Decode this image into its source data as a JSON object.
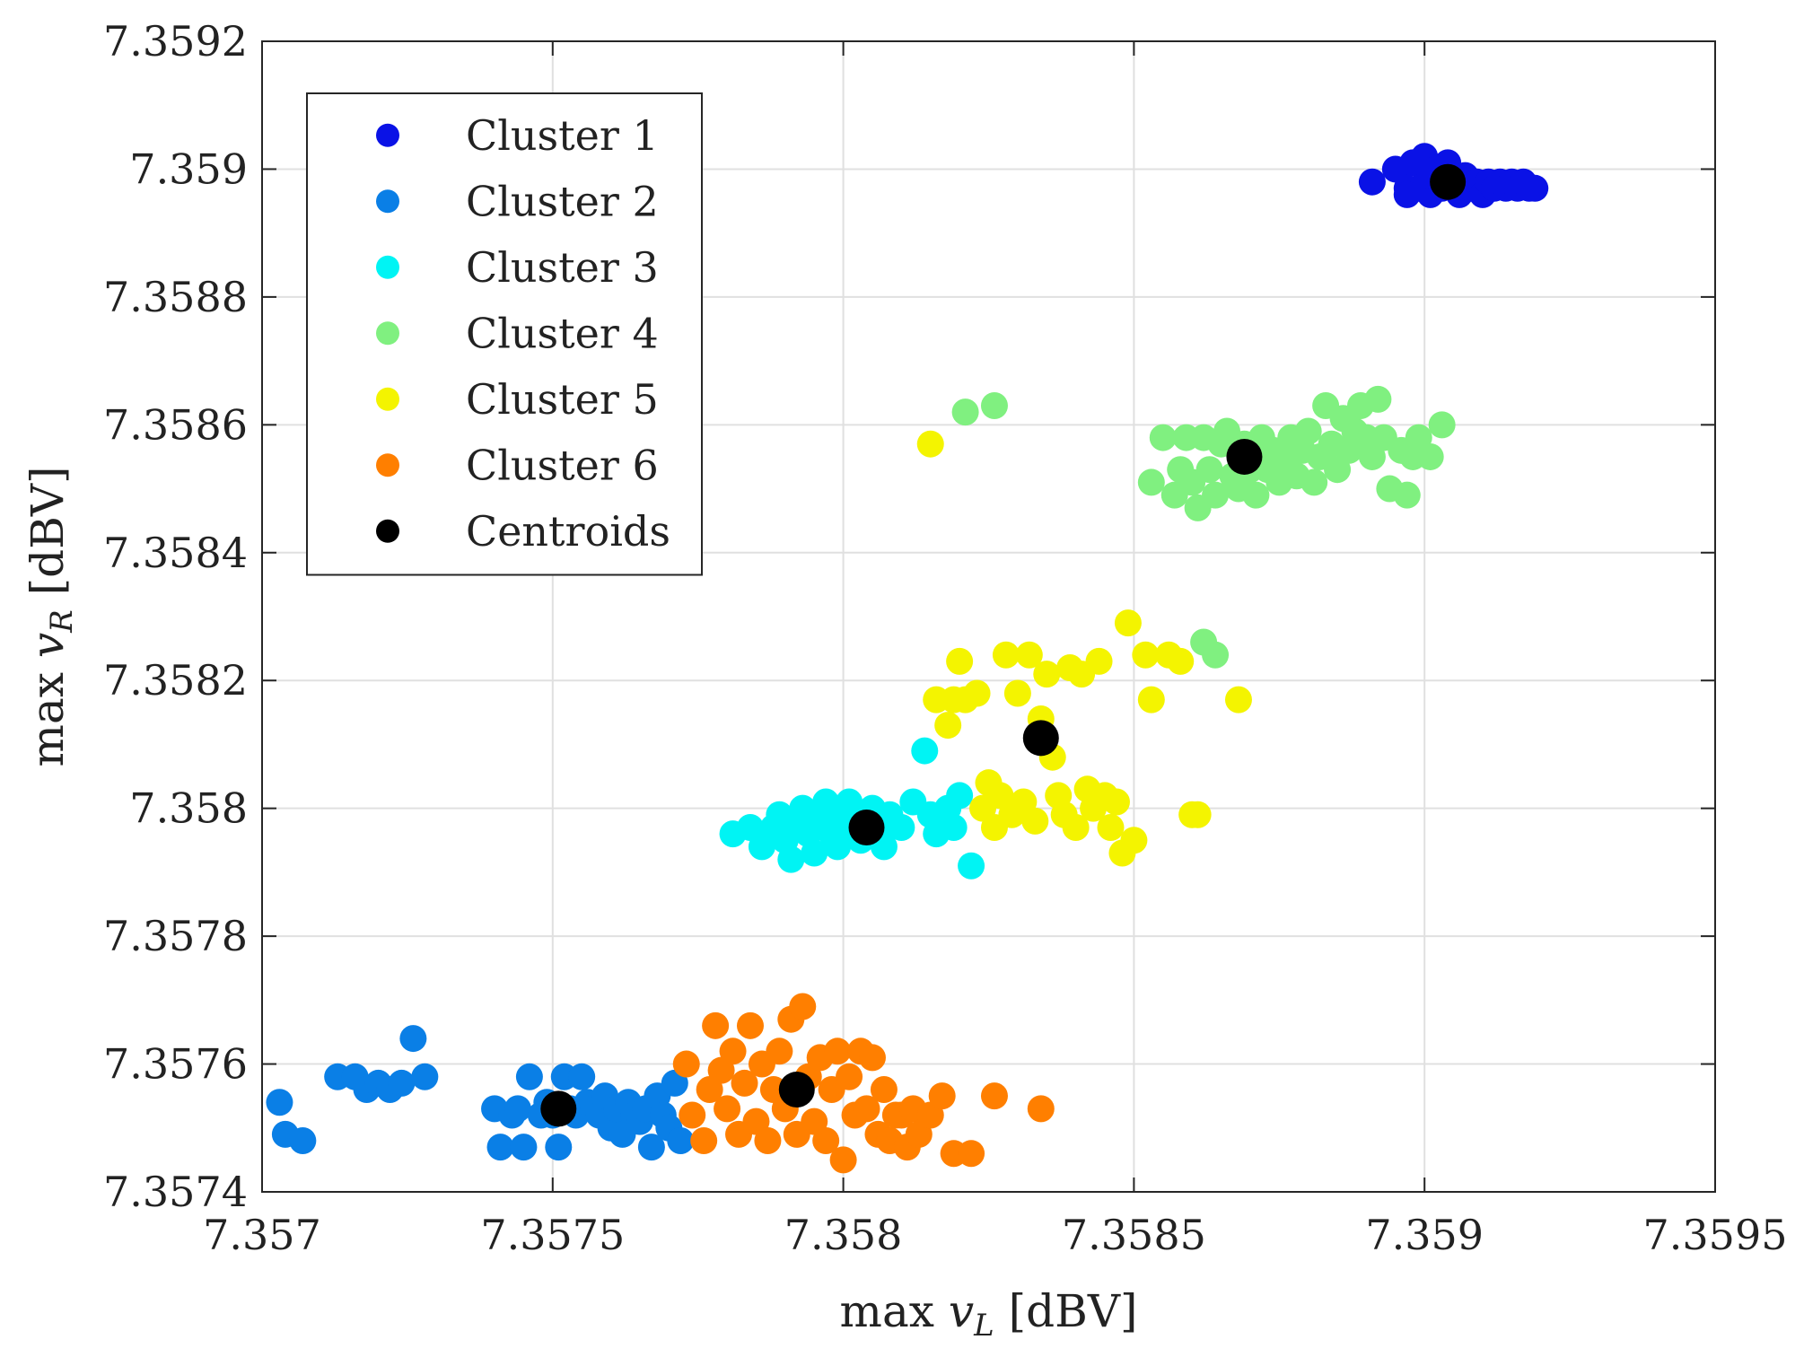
{
  "chart_data": {
    "type": "scatter",
    "title": "",
    "xlabel": {
      "prefix": "max ",
      "var": "v",
      "sub": "L",
      "suffix": " [dBV]"
    },
    "ylabel": {
      "prefix": "max ",
      "var": "v",
      "sub": "R",
      "suffix": " [dBV]"
    },
    "xlim": [
      7.357,
      7.3595
    ],
    "ylim": [
      7.3574,
      7.3592
    ],
    "xticks": [
      7.357,
      7.3575,
      7.358,
      7.3585,
      7.359,
      7.3595
    ],
    "xtick_labels": [
      "7.357",
      "7.3575",
      "7.358",
      "7.3585",
      "7.359",
      "7.3595"
    ],
    "yticks": [
      7.3574,
      7.3576,
      7.3578,
      7.358,
      7.3582,
      7.3584,
      7.3586,
      7.3588,
      7.359,
      7.3592
    ],
    "ytick_labels": [
      "7.3574",
      "7.3576",
      "7.3578",
      "7.358",
      "7.3582",
      "7.3584",
      "7.3586",
      "7.3588",
      "7.359",
      "7.3592"
    ],
    "grid": true,
    "legend_position": "top-left",
    "series": [
      {
        "name": "Cluster 1",
        "color": "#0a12e6",
        "points": [
          [
            7.35891,
            7.35898
          ],
          [
            7.35895,
            7.359
          ],
          [
            7.35897,
            7.35897
          ],
          [
            7.35898,
            7.35901
          ],
          [
            7.35899,
            7.35897
          ],
          [
            7.359,
            7.35902
          ],
          [
            7.35901,
            7.35896
          ],
          [
            7.35902,
            7.359
          ],
          [
            7.35903,
            7.35897
          ],
          [
            7.35904,
            7.35901
          ],
          [
            7.35905,
            7.35898
          ],
          [
            7.35906,
            7.35896
          ],
          [
            7.35907,
            7.35899
          ],
          [
            7.35908,
            7.35897
          ],
          [
            7.35909,
            7.35898
          ],
          [
            7.3591,
            7.35896
          ],
          [
            7.35911,
            7.35898
          ],
          [
            7.35912,
            7.35897
          ],
          [
            7.35913,
            7.35898
          ],
          [
            7.35914,
            7.35897
          ],
          [
            7.35915,
            7.35898
          ],
          [
            7.35916,
            7.35897
          ],
          [
            7.35917,
            7.35898
          ],
          [
            7.35918,
            7.35897
          ],
          [
            7.35919,
            7.35897
          ],
          [
            7.35897,
            7.35896
          ],
          [
            7.35901,
            7.35899
          ],
          [
            7.35905,
            7.35897
          ]
        ]
      },
      {
        "name": "Cluster 2",
        "color": "#0a7fe6",
        "points": [
          [
            7.35703,
            7.35754
          ],
          [
            7.35704,
            7.35749
          ],
          [
            7.35707,
            7.35748
          ],
          [
            7.35713,
            7.35758
          ],
          [
            7.35716,
            7.35758
          ],
          [
            7.35718,
            7.35756
          ],
          [
            7.3572,
            7.35757
          ],
          [
            7.35722,
            7.35756
          ],
          [
            7.35724,
            7.35757
          ],
          [
            7.35726,
            7.35764
          ],
          [
            7.35728,
            7.35758
          ],
          [
            7.3574,
            7.35753
          ],
          [
            7.35741,
            7.35747
          ],
          [
            7.35743,
            7.35752
          ],
          [
            7.35744,
            7.35753
          ],
          [
            7.35745,
            7.35747
          ],
          [
            7.35746,
            7.35758
          ],
          [
            7.35748,
            7.35752
          ],
          [
            7.35749,
            7.35754
          ],
          [
            7.3575,
            7.35752
          ],
          [
            7.35751,
            7.35747
          ],
          [
            7.35752,
            7.35758
          ],
          [
            7.35753,
            7.35753
          ],
          [
            7.35754,
            7.35752
          ],
          [
            7.35755,
            7.35758
          ],
          [
            7.35756,
            7.35754
          ],
          [
            7.35757,
            7.35753
          ],
          [
            7.35758,
            7.35752
          ],
          [
            7.35759,
            7.35755
          ],
          [
            7.3576,
            7.3575
          ],
          [
            7.35761,
            7.35753
          ],
          [
            7.35762,
            7.35749
          ],
          [
            7.35763,
            7.35754
          ],
          [
            7.35764,
            7.35752
          ],
          [
            7.35765,
            7.35751
          ],
          [
            7.35766,
            7.35753
          ],
          [
            7.35767,
            7.35747
          ],
          [
            7.35768,
            7.35755
          ],
          [
            7.35769,
            7.35752
          ],
          [
            7.3577,
            7.3575
          ],
          [
            7.35771,
            7.35757
          ],
          [
            7.35772,
            7.35748
          ]
        ]
      },
      {
        "name": "Cluster 3",
        "color": "#00f4f4",
        "points": [
          [
            7.35781,
            7.35796
          ],
          [
            7.35784,
            7.35797
          ],
          [
            7.35786,
            7.35794
          ],
          [
            7.35788,
            7.35797
          ],
          [
            7.35789,
            7.35799
          ],
          [
            7.3579,
            7.35795
          ],
          [
            7.35791,
            7.35792
          ],
          [
            7.35792,
            7.35797
          ],
          [
            7.35793,
            7.358
          ],
          [
            7.35794,
            7.35796
          ],
          [
            7.35795,
            7.35793
          ],
          [
            7.35796,
            7.35798
          ],
          [
            7.35797,
            7.35801
          ],
          [
            7.35798,
            7.35796
          ],
          [
            7.35799,
            7.35794
          ],
          [
            7.358,
            7.35799
          ],
          [
            7.35801,
            7.35801
          ],
          [
            7.35802,
            7.35797
          ],
          [
            7.35803,
            7.35795
          ],
          [
            7.35804,
            7.35798
          ],
          [
            7.35805,
            7.358
          ],
          [
            7.35806,
            7.35796
          ],
          [
            7.35807,
            7.35794
          ],
          [
            7.35808,
            7.35799
          ],
          [
            7.3581,
            7.35797
          ],
          [
            7.35812,
            7.35801
          ],
          [
            7.35814,
            7.35809
          ],
          [
            7.35815,
            7.35799
          ],
          [
            7.35816,
            7.35796
          ],
          [
            7.35818,
            7.358
          ],
          [
            7.35819,
            7.35797
          ],
          [
            7.3582,
            7.35802
          ],
          [
            7.35822,
            7.35791
          ]
        ]
      },
      {
        "name": "Cluster 4",
        "color": "#80f080",
        "points": [
          [
            7.35821,
            7.35862
          ],
          [
            7.35826,
            7.35863
          ],
          [
            7.35853,
            7.35851
          ],
          [
            7.35855,
            7.35858
          ],
          [
            7.35857,
            7.35849
          ],
          [
            7.35858,
            7.35853
          ],
          [
            7.35859,
            7.35858
          ],
          [
            7.3586,
            7.35851
          ],
          [
            7.35861,
            7.35847
          ],
          [
            7.35862,
            7.35858
          ],
          [
            7.35863,
            7.35853
          ],
          [
            7.35864,
            7.35849
          ],
          [
            7.35865,
            7.35857
          ],
          [
            7.35866,
            7.35859
          ],
          [
            7.35867,
            7.35852
          ],
          [
            7.35868,
            7.3585
          ],
          [
            7.35869,
            7.35857
          ],
          [
            7.3587,
            7.35853
          ],
          [
            7.35871,
            7.35849
          ],
          [
            7.35872,
            7.35858
          ],
          [
            7.35873,
            7.35853
          ],
          [
            7.35874,
            7.35856
          ],
          [
            7.35875,
            7.35851
          ],
          [
            7.35876,
            7.35854
          ],
          [
            7.35877,
            7.35858
          ],
          [
            7.35878,
            7.35852
          ],
          [
            7.35879,
            7.35856
          ],
          [
            7.3588,
            7.35859
          ],
          [
            7.35881,
            7.35851
          ],
          [
            7.35882,
            7.35855
          ],
          [
            7.35883,
            7.35863
          ],
          [
            7.35884,
            7.35857
          ],
          [
            7.35885,
            7.35853
          ],
          [
            7.35886,
            7.35861
          ],
          [
            7.35887,
            7.35856
          ],
          [
            7.35888,
            7.35859
          ],
          [
            7.35889,
            7.35863
          ],
          [
            7.3589,
            7.35858
          ],
          [
            7.35891,
            7.35855
          ],
          [
            7.35892,
            7.35864
          ],
          [
            7.35893,
            7.35858
          ],
          [
            7.35894,
            7.3585
          ],
          [
            7.35896,
            7.35856
          ],
          [
            7.35897,
            7.35849
          ],
          [
            7.35898,
            7.35855
          ],
          [
            7.35899,
            7.35858
          ],
          [
            7.35901,
            7.35855
          ],
          [
            7.35903,
            7.3586
          ],
          [
            7.35862,
            7.35826
          ],
          [
            7.35864,
            7.35824
          ]
        ]
      },
      {
        "name": "Cluster 5",
        "color": "#f4f400",
        "points": [
          [
            7.35815,
            7.35857
          ],
          [
            7.35816,
            7.35817
          ],
          [
            7.35818,
            7.35813
          ],
          [
            7.35819,
            7.35817
          ],
          [
            7.3582,
            7.35823
          ],
          [
            7.35821,
            7.35817
          ],
          [
            7.35823,
            7.35818
          ],
          [
            7.35824,
            7.358
          ],
          [
            7.35825,
            7.35804
          ],
          [
            7.35826,
            7.35797
          ],
          [
            7.35827,
            7.35802
          ],
          [
            7.35828,
            7.35824
          ],
          [
            7.35829,
            7.35799
          ],
          [
            7.3583,
            7.35818
          ],
          [
            7.35831,
            7.35801
          ],
          [
            7.35832,
            7.35824
          ],
          [
            7.35833,
            7.35798
          ],
          [
            7.35834,
            7.35814
          ],
          [
            7.35835,
            7.35821
          ],
          [
            7.35836,
            7.35808
          ],
          [
            7.35837,
            7.35802
          ],
          [
            7.35838,
            7.35799
          ],
          [
            7.35839,
            7.35822
          ],
          [
            7.3584,
            7.35797
          ],
          [
            7.35841,
            7.35821
          ],
          [
            7.35842,
            7.35803
          ],
          [
            7.35843,
            7.358
          ],
          [
            7.35844,
            7.35823
          ],
          [
            7.35845,
            7.35802
          ],
          [
            7.35846,
            7.35797
          ],
          [
            7.35847,
            7.35801
          ],
          [
            7.35848,
            7.35793
          ],
          [
            7.35849,
            7.35829
          ],
          [
            7.3585,
            7.35795
          ],
          [
            7.35852,
            7.35824
          ],
          [
            7.35853,
            7.35817
          ],
          [
            7.35856,
            7.35824
          ],
          [
            7.35858,
            7.35823
          ],
          [
            7.3586,
            7.35799
          ],
          [
            7.35861,
            7.35799
          ],
          [
            7.35868,
            7.35817
          ]
        ]
      },
      {
        "name": "Cluster 6",
        "color": "#ff7f00",
        "points": [
          [
            7.35773,
            7.3576
          ],
          [
            7.35774,
            7.35752
          ],
          [
            7.35776,
            7.35748
          ],
          [
            7.35777,
            7.35756
          ],
          [
            7.35778,
            7.35766
          ],
          [
            7.35779,
            7.35759
          ],
          [
            7.3578,
            7.35753
          ],
          [
            7.35781,
            7.35762
          ],
          [
            7.35782,
            7.35749
          ],
          [
            7.35783,
            7.35757
          ],
          [
            7.35784,
            7.35766
          ],
          [
            7.35785,
            7.35751
          ],
          [
            7.35786,
            7.3576
          ],
          [
            7.35787,
            7.35748
          ],
          [
            7.35788,
            7.35756
          ],
          [
            7.35789,
            7.35762
          ],
          [
            7.3579,
            7.35753
          ],
          [
            7.35791,
            7.35767
          ],
          [
            7.35792,
            7.35749
          ],
          [
            7.35793,
            7.35769
          ],
          [
            7.35794,
            7.35758
          ],
          [
            7.35795,
            7.35751
          ],
          [
            7.35796,
            7.35761
          ],
          [
            7.35797,
            7.35748
          ],
          [
            7.35798,
            7.35756
          ],
          [
            7.35799,
            7.35762
          ],
          [
            7.358,
            7.35745
          ],
          [
            7.35801,
            7.35758
          ],
          [
            7.35802,
            7.35752
          ],
          [
            7.35803,
            7.35762
          ],
          [
            7.35804,
            7.35753
          ],
          [
            7.35805,
            7.35761
          ],
          [
            7.35806,
            7.35749
          ],
          [
            7.35807,
            7.35756
          ],
          [
            7.35808,
            7.35748
          ],
          [
            7.35809,
            7.35752
          ],
          [
            7.3581,
            7.35752
          ],
          [
            7.35811,
            7.35747
          ],
          [
            7.35812,
            7.35753
          ],
          [
            7.35813,
            7.35749
          ],
          [
            7.35815,
            7.35752
          ],
          [
            7.35817,
            7.35755
          ],
          [
            7.35819,
            7.35746
          ],
          [
            7.35822,
            7.35746
          ],
          [
            7.35826,
            7.35755
          ],
          [
            7.35834,
            7.35753
          ]
        ]
      }
    ],
    "centroids": {
      "name": "Centroids",
      "color": "#000000",
      "points": [
        [
          7.35904,
          7.35898
        ],
        [
          7.35751,
          7.35753
        ],
        [
          7.35804,
          7.35797
        ],
        [
          7.35869,
          7.35855
        ],
        [
          7.35834,
          7.35811
        ],
        [
          7.35792,
          7.35756
        ]
      ]
    }
  }
}
